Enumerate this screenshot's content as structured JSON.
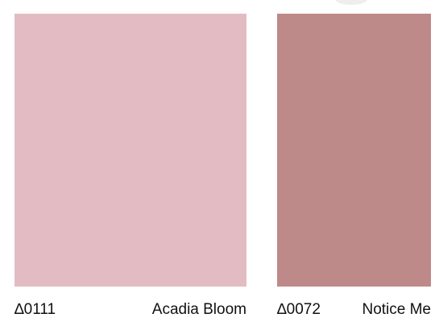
{
  "swatches": [
    {
      "code": "∆0111",
      "name": "Acadia Bloom",
      "color": "#e3bcc3"
    },
    {
      "code": "∆0072",
      "name": "Notice Me",
      "color": "#bd8a89"
    }
  ]
}
